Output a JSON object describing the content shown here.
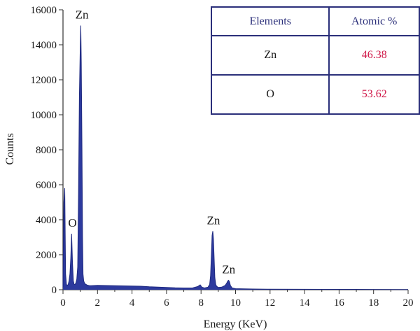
{
  "chart_data": {
    "type": "area",
    "xlabel": "Energy (KeV)",
    "ylabel": "Counts",
    "xlim": [
      0,
      20
    ],
    "ylim": [
      0,
      16000
    ],
    "xticks": [
      0,
      2,
      4,
      6,
      8,
      10,
      12,
      14,
      16,
      18,
      20
    ],
    "yticks": [
      0,
      2000,
      4000,
      6000,
      8000,
      10000,
      12000,
      14000,
      16000
    ],
    "fill_color": "#2d3a9e",
    "line_color": "#1f2a80",
    "spectrum": {
      "x": [
        0,
        0.05,
        0.1,
        0.15,
        0.2,
        0.25,
        0.3,
        0.35,
        0.4,
        0.45,
        0.5,
        0.55,
        0.6,
        0.65,
        0.7,
        0.75,
        0.8,
        0.85,
        0.9,
        0.95,
        1.0,
        1.03,
        1.06,
        1.1,
        1.13,
        1.16,
        1.2,
        1.25,
        1.3,
        1.4,
        1.5,
        1.6,
        2.0,
        2.5,
        3.0,
        3.5,
        4.0,
        4.5,
        5.0,
        5.5,
        6.0,
        6.5,
        7.0,
        7.5,
        7.8,
        7.95,
        8.05,
        8.2,
        8.4,
        8.5,
        8.55,
        8.6,
        8.64,
        8.68,
        8.72,
        8.76,
        8.8,
        8.85,
        8.9,
        9.0,
        9.2,
        9.4,
        9.5,
        9.55,
        9.6,
        9.65,
        9.7,
        9.8,
        10.0,
        10.5,
        11.0,
        12.0,
        14.0,
        16.0,
        18.0,
        20.0
      ],
      "y": [
        150,
        5000,
        5800,
        900,
        300,
        250,
        300,
        500,
        900,
        1800,
        3200,
        1500,
        500,
        300,
        300,
        400,
        600,
        1300,
        5500,
        11000,
        14000,
        15100,
        13000,
        8000,
        3000,
        900,
        500,
        380,
        320,
        270,
        240,
        230,
        250,
        240,
        230,
        220,
        210,
        200,
        170,
        150,
        130,
        110,
        100,
        100,
        180,
        280,
        150,
        100,
        150,
        300,
        800,
        2000,
        3100,
        3350,
        2900,
        1800,
        700,
        300,
        200,
        130,
        150,
        250,
        400,
        500,
        540,
        450,
        250,
        100,
        60,
        50,
        40,
        30,
        25,
        20,
        15,
        10
      ]
    },
    "annotations": [
      {
        "text": "Zn",
        "x": 1.1,
        "y": 15100
      },
      {
        "text": "O",
        "x": 0.55,
        "y": 3200
      },
      {
        "text": "Zn",
        "x": 8.72,
        "y": 3350
      },
      {
        "text": "Zn",
        "x": 9.6,
        "y": 540
      }
    ]
  },
  "table": {
    "headers": [
      "Elements",
      "Atomic %"
    ],
    "rows": [
      {
        "element": "Zn",
        "value": "46.38"
      },
      {
        "element": "O",
        "value": "53.62"
      }
    ]
  }
}
